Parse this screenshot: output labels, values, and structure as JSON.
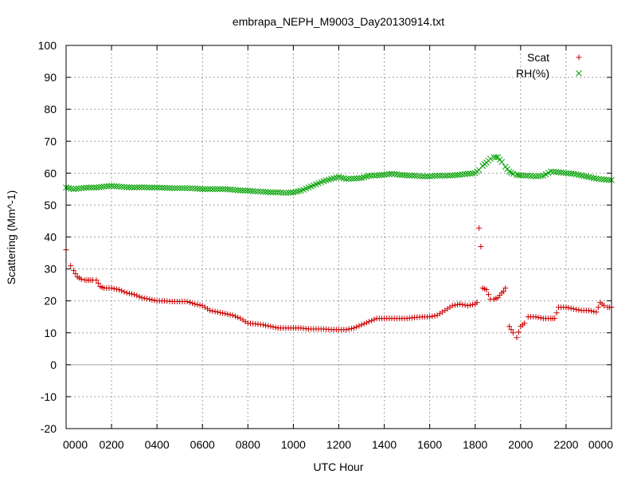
{
  "chart_data": {
    "type": "scatter",
    "title": "embrapa_NEPH_M9003_Day20130914.txt",
    "xlabel": "UTC Hour",
    "ylabel": "Scattering (Mm^-1)",
    "xlim": [
      0,
      24
    ],
    "ylim": [
      -20,
      100
    ],
    "grid": true,
    "legend_position": "top-right",
    "x_tick_values": [
      0,
      2,
      4,
      6,
      8,
      10,
      12,
      14,
      16,
      18,
      20,
      22,
      24
    ],
    "x_tick_labels": [
      "0000",
      "0200",
      "0400",
      "0600",
      "0800",
      "1000",
      "1200",
      "1400",
      "1600",
      "1800",
      "2000",
      "2200",
      "0000"
    ],
    "y_tick_values": [
      -20,
      -10,
      0,
      10,
      20,
      30,
      40,
      50,
      60,
      70,
      80,
      90,
      100
    ],
    "y_tick_labels": [
      "-20",
      "-10",
      "0",
      "10",
      "20",
      "30",
      "40",
      "50",
      "60",
      "70",
      "80",
      "90",
      "100"
    ],
    "series": [
      {
        "name": "Scat",
        "marker": "plus",
        "color": "#cc0000",
        "x": [
          0.0,
          0.2,
          0.33,
          0.5,
          0.67,
          0.83,
          1.0,
          1.17,
          1.33,
          1.5,
          1.67,
          2.0,
          2.33,
          2.67,
          3.0,
          3.33,
          3.67,
          4.0,
          4.33,
          4.67,
          5.0,
          5.33,
          5.67,
          6.0,
          6.33,
          6.67,
          7.0,
          7.33,
          7.67,
          8.0,
          8.33,
          8.67,
          9.0,
          9.33,
          9.67,
          10.0,
          10.33,
          10.67,
          11.0,
          11.33,
          11.67,
          12.0,
          12.33,
          12.67,
          13.0,
          13.33,
          13.67,
          14.0,
          14.33,
          14.67,
          15.0,
          15.33,
          15.67,
          16.0,
          16.33,
          16.67,
          17.0,
          17.33,
          17.67,
          18.0,
          18.08,
          18.17,
          18.25,
          18.33,
          18.5,
          18.67,
          18.83,
          19.0,
          19.17,
          19.25,
          19.33,
          19.5,
          19.67,
          19.83,
          20.0,
          20.17,
          20.33,
          20.67,
          21.0,
          21.33,
          21.5,
          21.67,
          22.0,
          22.33,
          22.67,
          23.0,
          23.33,
          23.5,
          23.67,
          23.83,
          24.0
        ],
        "y": [
          36.0,
          31.0,
          29.5,
          27.5,
          26.8,
          26.5,
          26.5,
          26.5,
          26.5,
          24.5,
          24.0,
          24.0,
          23.5,
          22.5,
          22.0,
          21.0,
          20.5,
          20.0,
          20.0,
          19.8,
          19.8,
          19.8,
          19.0,
          18.5,
          17.0,
          16.5,
          16.0,
          15.5,
          14.5,
          13.0,
          12.8,
          12.5,
          12.0,
          11.5,
          11.5,
          11.5,
          11.5,
          11.2,
          11.2,
          11.2,
          11.0,
          11.0,
          11.0,
          11.5,
          12.5,
          13.5,
          14.5,
          14.5,
          14.5,
          14.5,
          14.5,
          14.8,
          15.0,
          15.0,
          15.5,
          17.0,
          18.5,
          19.0,
          18.5,
          19.0,
          19.5,
          42.8,
          37.0,
          24.0,
          23.5,
          20.5,
          20.5,
          21.0,
          22.5,
          23.0,
          24.0,
          12.0,
          10.0,
          8.5,
          12.0,
          13.0,
          15.0,
          15.0,
          14.5,
          14.5,
          14.5,
          18.0,
          18.0,
          17.5,
          17.0,
          17.0,
          16.5,
          19.5,
          18.5,
          18.0,
          18.0
        ]
      },
      {
        "name": "RH(%)",
        "marker": "cross",
        "color": "#00a000",
        "x": [
          0.0,
          0.33,
          0.67,
          1.0,
          1.33,
          1.67,
          2.0,
          2.33,
          2.67,
          3.0,
          3.33,
          3.67,
          4.0,
          4.33,
          4.67,
          5.0,
          5.33,
          5.67,
          6.0,
          6.33,
          6.67,
          7.0,
          7.33,
          7.67,
          8.0,
          8.33,
          8.67,
          9.0,
          9.33,
          9.67,
          10.0,
          10.33,
          10.67,
          11.0,
          11.33,
          11.67,
          12.0,
          12.33,
          12.67,
          13.0,
          13.33,
          13.67,
          14.0,
          14.33,
          14.67,
          15.0,
          15.33,
          15.67,
          16.0,
          16.33,
          16.67,
          17.0,
          17.33,
          17.67,
          18.0,
          18.17,
          18.33,
          18.5,
          18.67,
          18.83,
          19.0,
          19.17,
          19.33,
          19.5,
          19.67,
          19.83,
          20.0,
          20.33,
          20.67,
          21.0,
          21.33,
          21.67,
          22.0,
          22.33,
          22.67,
          23.0,
          23.33,
          23.67,
          24.0
        ],
        "y": [
          55.5,
          55.0,
          55.3,
          55.5,
          55.5,
          55.8,
          56.0,
          55.8,
          55.6,
          55.5,
          55.6,
          55.5,
          55.5,
          55.4,
          55.3,
          55.3,
          55.3,
          55.2,
          55.0,
          55.0,
          55.0,
          55.0,
          54.8,
          54.6,
          54.5,
          54.3,
          54.2,
          54.0,
          54.0,
          53.8,
          54.0,
          54.5,
          55.5,
          56.5,
          57.5,
          58.2,
          58.8,
          58.2,
          58.3,
          58.5,
          59.2,
          59.3,
          59.5,
          59.8,
          59.5,
          59.3,
          59.2,
          59.0,
          59.0,
          59.2,
          59.2,
          59.3,
          59.5,
          59.8,
          60.0,
          61.0,
          62.3,
          63.3,
          64.5,
          65.0,
          65.0,
          63.5,
          62.0,
          60.5,
          59.8,
          59.5,
          59.3,
          59.2,
          59.0,
          59.2,
          60.5,
          60.3,
          60.0,
          59.8,
          59.3,
          58.8,
          58.3,
          58.0,
          57.8
        ]
      }
    ]
  }
}
